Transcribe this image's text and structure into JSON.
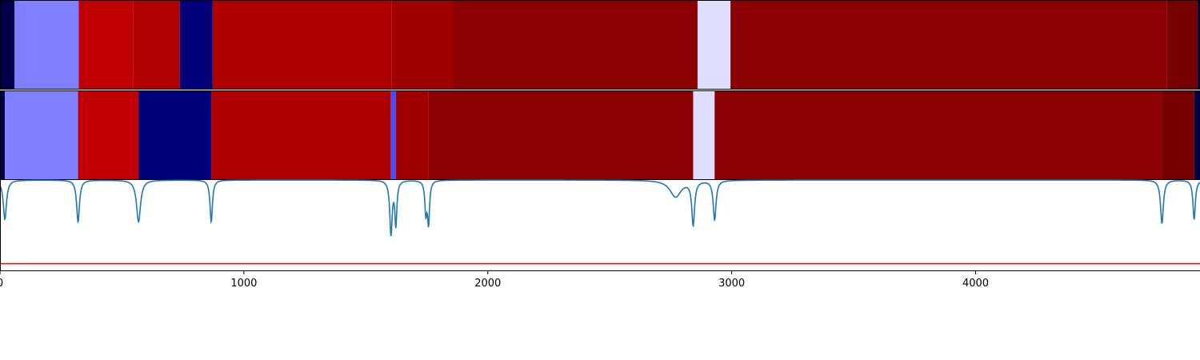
{
  "chart_data": {
    "type": "heatmap",
    "title": "",
    "xlabel": "",
    "ylabel": "",
    "xlim": [
      0,
      4920
    ],
    "x_ticks": [
      0,
      1000,
      2000,
      3000,
      4000
    ],
    "x_tick_labels": [
      "0",
      "1000",
      "2000",
      "3000",
      "4000"
    ],
    "grid": false,
    "legend": "none",
    "bands": [
      {
        "segments": [
          {
            "start": 0,
            "end": 60,
            "color": "#00004a"
          },
          {
            "start": 60,
            "end": 323,
            "color": "#7f7fff"
          },
          {
            "start": 323,
            "end": 545,
            "color": "#c00000"
          },
          {
            "start": 545,
            "end": 737,
            "color": "#b00000"
          },
          {
            "start": 737,
            "end": 872,
            "color": "#00007a"
          },
          {
            "start": 872,
            "end": 1605,
            "color": "#ae0000"
          },
          {
            "start": 1605,
            "end": 1858,
            "color": "#9f0000"
          },
          {
            "start": 1858,
            "end": 2860,
            "color": "#8b0000"
          },
          {
            "start": 2860,
            "end": 2995,
            "color": "#dedeff"
          },
          {
            "start": 2995,
            "end": 4785,
            "color": "#8b0000"
          },
          {
            "start": 4785,
            "end": 4910,
            "color": "#760000"
          },
          {
            "start": 4910,
            "end": 4920,
            "color": "#00004a"
          }
        ]
      },
      {
        "segments": [
          {
            "start": 0,
            "end": 20,
            "color": "#00004a"
          },
          {
            "start": 20,
            "end": 320,
            "color": "#7f7fff"
          },
          {
            "start": 320,
            "end": 568,
            "color": "#c00000"
          },
          {
            "start": 568,
            "end": 866,
            "color": "#00007a"
          },
          {
            "start": 866,
            "end": 1603,
            "color": "#ae0000"
          },
          {
            "start": 1603,
            "end": 1623,
            "color": "#4a4aff"
          },
          {
            "start": 1623,
            "end": 1757,
            "color": "#9f0000"
          },
          {
            "start": 1757,
            "end": 2842,
            "color": "#8b0000"
          },
          {
            "start": 2842,
            "end": 2930,
            "color": "#dedeff"
          },
          {
            "start": 2930,
            "end": 4764,
            "color": "#8b0000"
          },
          {
            "start": 4764,
            "end": 4896,
            "color": "#760000"
          },
          {
            "start": 4896,
            "end": 4920,
            "color": "#00004a"
          }
        ]
      }
    ],
    "line_panel": {
      "ylim": [
        -0.08,
        1.0
      ],
      "baseline": 1.0,
      "threshold": 0.0,
      "line_color": "#1f77b4",
      "threshold_color": "#ff0000",
      "dips": [
        {
          "x": 20,
          "depth": 0.47,
          "width": 8
        },
        {
          "x": 320,
          "depth": 0.5,
          "width": 7
        },
        {
          "x": 568,
          "depth": 0.5,
          "width": 10
        },
        {
          "x": 866,
          "depth": 0.5,
          "width": 6
        },
        {
          "x": 1603,
          "depth": 0.64,
          "width": 6
        },
        {
          "x": 1623,
          "depth": 0.52,
          "width": 5
        },
        {
          "x": 1746,
          "depth": 0.37,
          "width": 5
        },
        {
          "x": 1757,
          "depth": 0.5,
          "width": 5
        },
        {
          "x": 2770,
          "depth": 0.2,
          "width": 28
        },
        {
          "x": 2842,
          "depth": 0.52,
          "width": 7
        },
        {
          "x": 2930,
          "depth": 0.47,
          "width": 7
        },
        {
          "x": 4764,
          "depth": 0.52,
          "width": 7
        },
        {
          "x": 4896,
          "depth": 0.47,
          "width": 6
        }
      ]
    }
  }
}
